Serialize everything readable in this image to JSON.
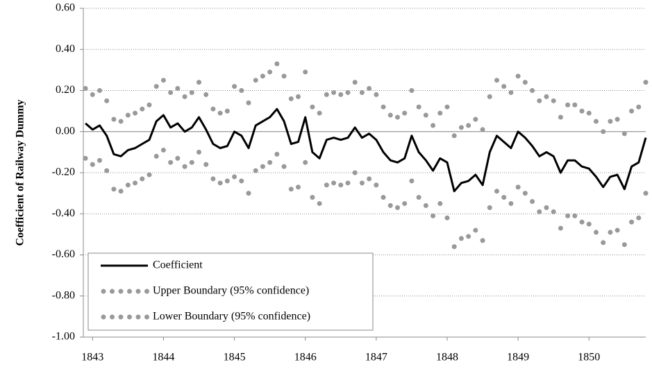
{
  "chart_data": {
    "type": "line",
    "y_label": "Coefficient of Railway Dummy",
    "x": [
      1842.9,
      1843.0,
      1843.1,
      1843.2,
      1843.3,
      1843.4,
      1843.5,
      1843.6,
      1843.7,
      1843.8,
      1843.9,
      1844.0,
      1844.1,
      1844.2,
      1844.3,
      1844.4,
      1844.5,
      1844.6,
      1844.7,
      1844.8,
      1844.9,
      1845.0,
      1845.1,
      1845.2,
      1845.3,
      1845.4,
      1845.5,
      1845.6,
      1845.7,
      1845.8,
      1845.9,
      1846.0,
      1846.1,
      1846.2,
      1846.3,
      1846.4,
      1846.5,
      1846.6,
      1846.7,
      1846.8,
      1846.9,
      1847.0,
      1847.1,
      1847.2,
      1847.3,
      1847.4,
      1847.5,
      1847.6,
      1847.7,
      1847.8,
      1847.9,
      1848.0,
      1848.1,
      1848.2,
      1848.3,
      1848.4,
      1848.5,
      1848.6,
      1848.7,
      1848.8,
      1848.9,
      1849.0,
      1849.1,
      1849.2,
      1849.3,
      1849.4,
      1849.5,
      1849.6,
      1849.7,
      1849.8,
      1849.9,
      1850.0,
      1850.1,
      1850.2,
      1850.3,
      1850.4,
      1850.5,
      1850.6,
      1850.7,
      1850.8
    ],
    "series": [
      {
        "name": "Coefficient",
        "color": "#000000",
        "style": "line",
        "values": [
          0.04,
          0.01,
          0.03,
          -0.02,
          -0.11,
          -0.12,
          -0.09,
          -0.08,
          -0.06,
          -0.04,
          0.05,
          0.08,
          0.02,
          0.04,
          0.0,
          0.02,
          0.07,
          0.01,
          -0.06,
          -0.08,
          -0.07,
          0.0,
          -0.02,
          -0.08,
          0.03,
          0.05,
          0.07,
          0.11,
          0.05,
          -0.06,
          -0.05,
          0.07,
          -0.1,
          -0.13,
          -0.04,
          -0.03,
          -0.04,
          -0.03,
          0.02,
          -0.03,
          -0.01,
          -0.04,
          -0.1,
          -0.14,
          -0.15,
          -0.13,
          -0.02,
          -0.1,
          -0.14,
          -0.19,
          -0.13,
          -0.15,
          -0.29,
          -0.25,
          -0.24,
          -0.21,
          -0.26,
          -0.1,
          -0.02,
          -0.05,
          -0.08,
          0.0,
          -0.03,
          -0.07,
          -0.12,
          -0.1,
          -0.12,
          -0.2,
          -0.14,
          -0.14,
          -0.17,
          -0.18,
          -0.22,
          -0.27,
          -0.22,
          -0.21,
          -0.28,
          -0.17,
          -0.15,
          -0.03
        ]
      },
      {
        "name": "Upper Boundary (95% confidence)",
        "color": "#999999",
        "style": "dots",
        "values": [
          0.21,
          0.18,
          0.2,
          0.15,
          0.06,
          0.05,
          0.08,
          0.09,
          0.11,
          0.13,
          0.22,
          0.25,
          0.19,
          0.21,
          0.17,
          0.19,
          0.24,
          0.18,
          0.11,
          0.09,
          0.1,
          0.22,
          0.2,
          0.14,
          0.25,
          0.27,
          0.29,
          0.33,
          0.27,
          0.16,
          0.17,
          0.29,
          0.12,
          0.09,
          0.18,
          0.19,
          0.18,
          0.19,
          0.24,
          0.19,
          0.21,
          0.18,
          0.12,
          0.08,
          0.07,
          0.09,
          0.2,
          0.12,
          0.08,
          0.03,
          0.09,
          0.12,
          -0.02,
          0.02,
          0.03,
          0.06,
          0.01,
          0.17,
          0.25,
          0.22,
          0.19,
          0.27,
          0.24,
          0.2,
          0.15,
          0.17,
          0.15,
          0.07,
          0.13,
          0.13,
          0.1,
          0.09,
          0.05,
          0.0,
          0.05,
          0.06,
          -0.01,
          0.1,
          0.12,
          0.24
        ]
      },
      {
        "name": "Lower Boundary (95% confidence)",
        "color": "#999999",
        "style": "dots",
        "values": [
          -0.13,
          -0.16,
          -0.14,
          -0.19,
          -0.28,
          -0.29,
          -0.26,
          -0.25,
          -0.23,
          -0.21,
          -0.12,
          -0.09,
          -0.15,
          -0.13,
          -0.17,
          -0.15,
          -0.1,
          -0.16,
          -0.23,
          -0.25,
          -0.24,
          -0.22,
          -0.24,
          -0.3,
          -0.19,
          -0.17,
          -0.15,
          -0.11,
          -0.17,
          -0.28,
          -0.27,
          -0.15,
          -0.32,
          -0.35,
          -0.26,
          -0.25,
          -0.26,
          -0.25,
          -0.2,
          -0.25,
          -0.23,
          -0.26,
          -0.32,
          -0.36,
          -0.37,
          -0.35,
          -0.24,
          -0.32,
          -0.36,
          -0.41,
          -0.35,
          -0.42,
          -0.56,
          -0.52,
          -0.51,
          -0.48,
          -0.53,
          -0.37,
          -0.29,
          -0.32,
          -0.35,
          -0.27,
          -0.3,
          -0.34,
          -0.39,
          -0.37,
          -0.39,
          -0.47,
          -0.41,
          -0.41,
          -0.44,
          -0.45,
          -0.49,
          -0.54,
          -0.49,
          -0.48,
          -0.55,
          -0.44,
          -0.42,
          -0.3
        ]
      }
    ],
    "xlim": [
      1842.87,
      1850.8
    ],
    "xticks": [
      1843,
      1844,
      1845,
      1846,
      1847,
      1848,
      1849,
      1850
    ],
    "ylim": [
      -1,
      0.6
    ],
    "yticks": [
      {
        "value": -1,
        "label": "-1.00"
      },
      {
        "value": -0.8,
        "label": "-0.80"
      },
      {
        "value": -0.6,
        "label": "-0.60"
      },
      {
        "value": -0.4,
        "label": "-0.40"
      },
      {
        "value": -0.2,
        "label": "-0.20"
      },
      {
        "value": 0,
        "label": "0.00"
      },
      {
        "value": 0.2,
        "label": "0.20"
      },
      {
        "value": 0.4,
        "label": "0.40"
      },
      {
        "value": 0.6,
        "label": "0.60"
      }
    ],
    "grid": true,
    "legend": "lower left"
  }
}
